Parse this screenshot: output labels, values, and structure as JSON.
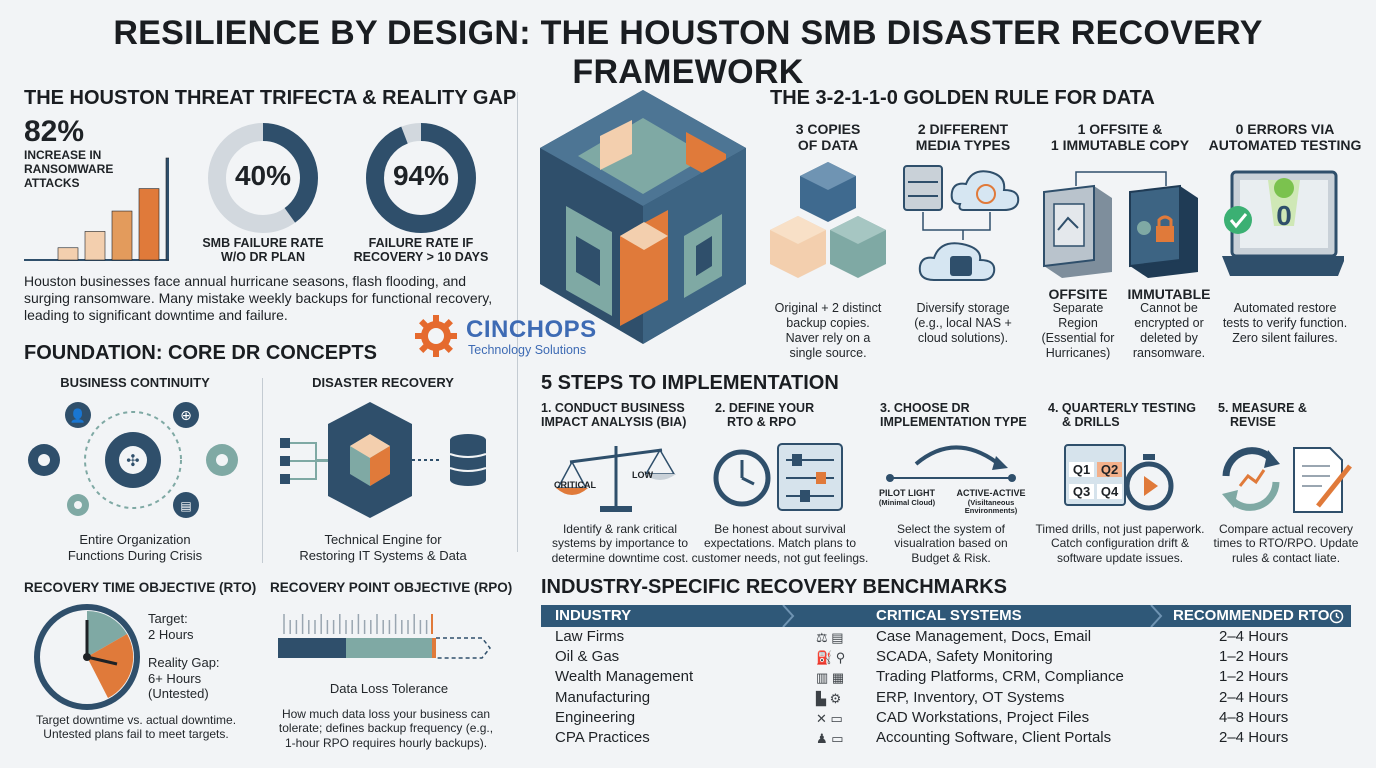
{
  "title": "RESILIENCE BY DESIGN: THE HOUSTON SMB DISASTER RECOVERY FRAMEWORK",
  "threat": {
    "heading": "THE HOUSTON THREAT TRIFECTA & REALITY GAP",
    "stat1_value": "82%",
    "stat1_label": "INCREASE IN RANSOMWARE ATTACKS",
    "bars": [
      0.12,
      0.28,
      0.48,
      0.7,
      1.0
    ],
    "ring1": {
      "value": "40%",
      "fraction": 0.4,
      "label_1": "SMB FAILURE RATE",
      "label_2": "W/O DR PLAN"
    },
    "ring2": {
      "value": "94%",
      "fraction": 0.94,
      "label_1": "FAILURE RATE IF",
      "label_2": "RECOVERY > 10 DAYS"
    },
    "paragraph": "Houston businesses face annual hurricane seasons, flash flooding, and surging ransomware. Many mistake weekly backups for functional recovery, leading to significant downtime and failure."
  },
  "logo": {
    "name": "CINCHOPS",
    "tagline": "Technology Solutions"
  },
  "foundation": {
    "heading": "FOUNDATION: CORE DR CONCEPTS",
    "bc_title": "BUSINESS CONTINUITY",
    "bc_caption_1": "Entire Organization",
    "bc_caption_2": "Functions During Crisis",
    "dr_title": "DISASTER RECOVERY",
    "dr_caption_1": "Technical Engine for",
    "dr_caption_2": "Restoring IT Systems & Data",
    "rto_title": "RECOVERY TIME OBJECTIVE (RTO)",
    "rto_target_1": "Target:",
    "rto_target_2": "2 Hours",
    "rto_gap_1": "Reality Gap:",
    "rto_gap_2": "6+ Hours",
    "rto_gap_3": "(Untested)",
    "rto_caption_1": "Target downtime vs. actual downtime.",
    "rto_caption_2": "Untested plans fail to meet targets.",
    "rpo_title": "RECOVERY POINT OBJECTIVE (RPO)",
    "rpo_bar_label": "Data Loss Tolerance",
    "rpo_caption_1": "How much data loss your business can",
    "rpo_caption_2": "tolerate; defines backup frequency (e.g.,",
    "rpo_caption_3": "1-hour RPO requires hourly backups)."
  },
  "rule": {
    "heading": "THE 3-2-1-1-0 GOLDEN RULE FOR DATA",
    "c1_title_1": "3 COPIES",
    "c1_title_2": "OF DATA",
    "c1_desc_1": "Original + 2 distinct",
    "c1_desc_2": "backup copies.",
    "c1_desc_3": "Naver rely on a",
    "c1_desc_4": "single source.",
    "c2_title_1": "2 DIFFERENT",
    "c2_title_2": "MEDIA TYPES",
    "c2_desc_1": "Diversify storage",
    "c2_desc_2": "(e.g., local NAS +",
    "c2_desc_3": "cloud solutions).",
    "c3_title_1": "1 OFFSITE &",
    "c3_title_2": "1 IMMUTABLE COPY",
    "offsite_label": "OFFSITE",
    "offsite_desc_1": "Separate",
    "offsite_desc_2": "Region",
    "offsite_desc_3": "(Essential for",
    "offsite_desc_4": "Hurricanes)",
    "immutable_label": "IMMUTABLE",
    "immutable_desc_1": "Cannot be",
    "immutable_desc_2": "encrypted or",
    "immutable_desc_3": "deleted by",
    "immutable_desc_4": "ransomware.",
    "c4_title_1": "0 ERRORS VIA",
    "c4_title_2": "AUTOMATED TESTING",
    "zero_digit": "0",
    "c4_desc_1": "Automated restore",
    "c4_desc_2": "tests to verify function.",
    "c4_desc_3": "Zero silent failures."
  },
  "steps": {
    "heading": "5 STEPS TO IMPLEMENTATION",
    "s1_t1": "1. CONDUCT BUSINESS",
    "s1_t2": "IMPACT ANALYSIS (BIA)",
    "s1_scale_left": "CRITICAL",
    "s1_scale_right": "LOW",
    "s1_d1": "Identify & rank critical",
    "s1_d2": "systems by importance to",
    "s1_d3": "determine downtime cost.",
    "s2_t1": "2. DEFINE YOUR",
    "s2_t2": "RTO & RPO",
    "s2_d1": "Be honest about survival",
    "s2_d2": "expectations. Match plans to",
    "s2_d3": "customer needs, not gut feelings.",
    "s3_t1": "3. CHOOSE DR",
    "s3_t2": "IMPLEMENTATION TYPE",
    "s3_left_1": "PILOT LIGHT",
    "s3_left_2": "(Minimal Cloud)",
    "s3_right_1": "ACTIVE-ACTIVE",
    "s3_right_2": "(Visiltaneous",
    "s3_right_3": "Environments)",
    "s3_d1": "Select the system of",
    "s3_d2": "visualration based on",
    "s3_d3": "Budget & Risk.",
    "s4_t1": "4. QUARTERLY TESTING",
    "s4_t2": "& DRILLS",
    "q1": "Q1",
    "q2": "Q2",
    "q3": "Q3",
    "q4": "Q4",
    "s4_d1": "Timed drills, not just paperwork.",
    "s4_d2": "Catch configuration drift &",
    "s4_d3": "software update issues.",
    "s5_t1": "5. MEASURE &",
    "s5_t2": "REVISE",
    "s5_d1": "Compare actual recovery",
    "s5_d2": "times to RTO/RPO. Update",
    "s5_d3": "rules & contact liate."
  },
  "bench": {
    "heading": "INDUSTRY-SPECIFIC RECOVERY BENCHMARKS",
    "col_industry": "INDUSTRY",
    "col_systems": "CRITICAL SYSTEMS",
    "col_rto": "RECOMMENDED RTO",
    "rows": [
      {
        "industry": "Law Firms",
        "icons": "⚖ ▤",
        "systems": "Case Management, Docs, Email",
        "rto": "2–4 Hours"
      },
      {
        "industry": "Oil & Gas",
        "icons": "⛽ ⚲",
        "systems": "SCADA, Safety Monitoring",
        "rto": "1–2 Hours"
      },
      {
        "industry": "Wealth Management",
        "icons": "▥ ▦",
        "systems": "Trading Platforms, CRM, Compliance",
        "rto": "1–2 Hours"
      },
      {
        "industry": "Manufacturing",
        "icons": "▙ ⚙",
        "systems": "ERP, Inventory, OT Systems",
        "rto": "2–4 Hours"
      },
      {
        "industry": "Engineering",
        "icons": "✕ ▭",
        "systems": "CAD Workstations, Project Files",
        "rto": "4–8 Hours"
      },
      {
        "industry": "CPA Practices",
        "icons": "♟ ▭",
        "systems": "Accounting Software, Client Portals",
        "rto": "2–4 Hours"
      }
    ]
  },
  "colors": {
    "navy": "#2f4f6b",
    "orange": "#e07a3a",
    "teal": "#7fa9a4",
    "peach": "#f3cfae",
    "grey": "#c9d1d8"
  }
}
